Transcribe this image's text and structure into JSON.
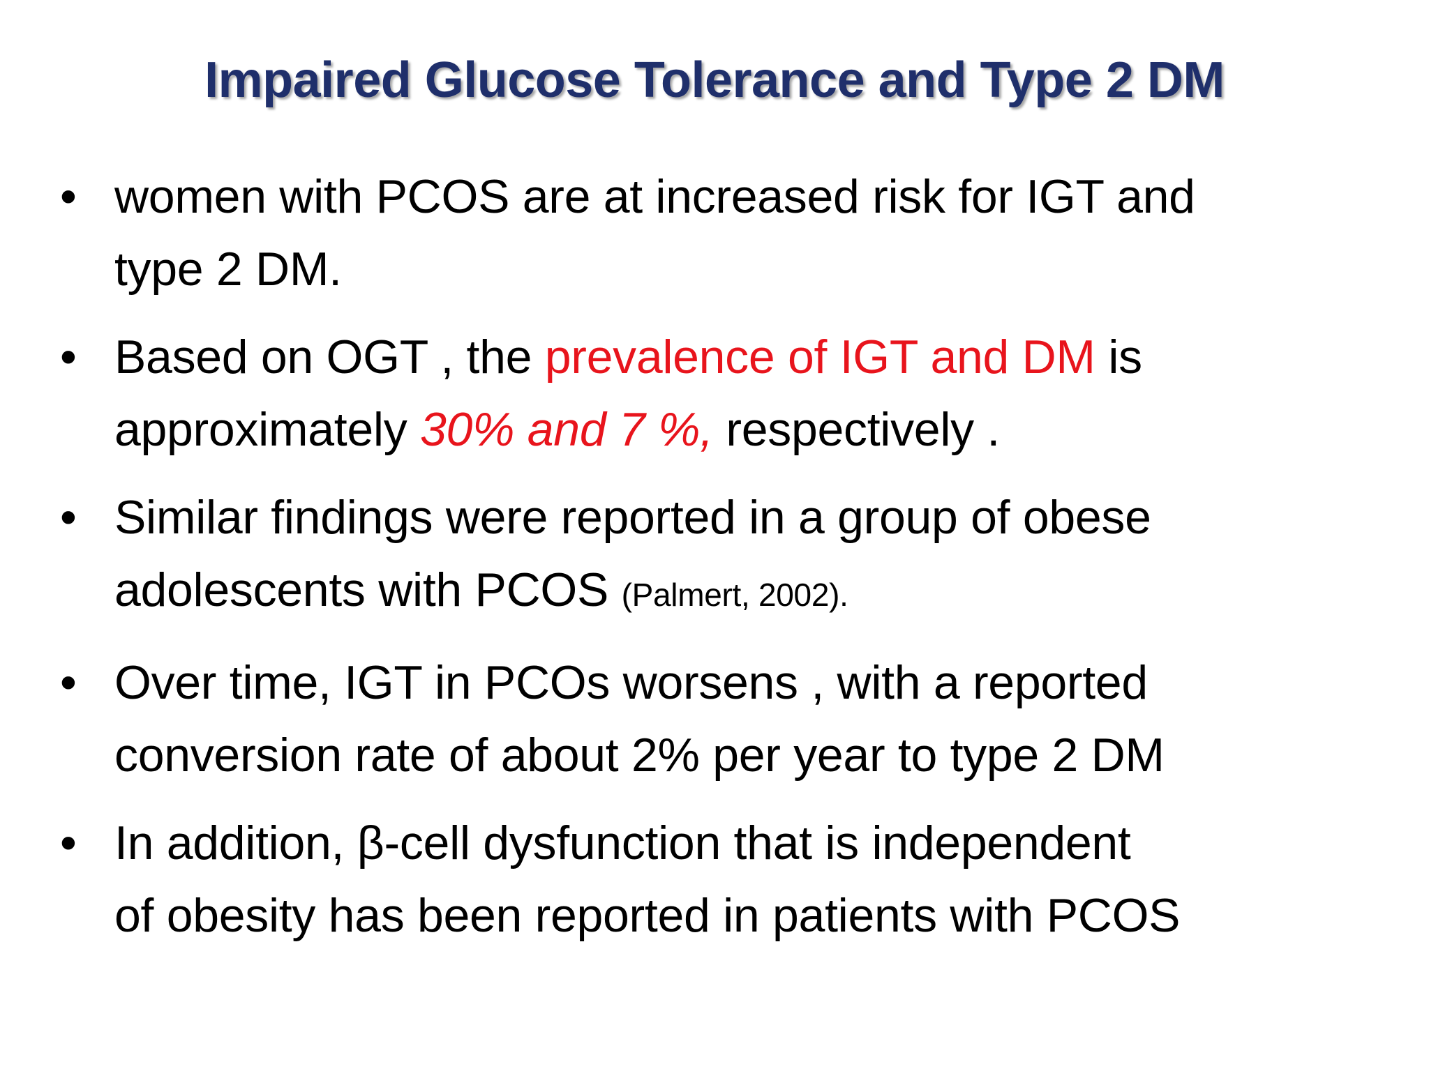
{
  "slide": {
    "title": "Impaired Glucose Tolerance and Type 2 DM",
    "bullet_glyph": "•",
    "accent_color": "#e8141c",
    "title_color": "#1f2f6b",
    "bullets": [
      {
        "line1": "women with PCOS are at increased risk for IGT and",
        "line2": "type 2 DM."
      },
      {
        "line1_pre": "Based on  OGT , the ",
        "line1_red": "prevalence of IGT and DM",
        "line1_post": " is",
        "line2_pre": "approximately ",
        "line2_red_italic": "30% and 7 %,",
        "line2_post": " respectively ."
      },
      {
        "line1": " Similar findings were reported in a group of obese",
        "line2_pre": "adolescents with PCOS ",
        "line2_cite": "(Palmert, 2002)."
      },
      {
        "line1": "Over time, IGT in PCOs worsens , with a reported",
        "line2": "conversion rate of about 2% per year to type 2 DM"
      },
      {
        "line1": " In addition, β-cell dysfunction that is independent",
        "line2": "of obesity has been reported in patients with PCOS"
      }
    ]
  }
}
